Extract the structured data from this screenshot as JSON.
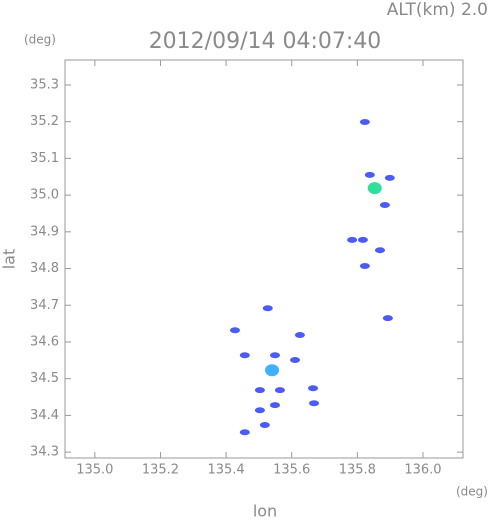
{
  "chart_data": {
    "type": "scatter",
    "title": "2012/09/14 04:07:40",
    "subtitle": "ALT(km) 2.0",
    "y_unit": "(deg)",
    "x_unit": "(deg)",
    "x_label": "lon",
    "y_label": "lat",
    "xlim": [
      134.909,
      136.122
    ],
    "ylim": [
      34.284,
      35.368
    ],
    "xticks": [
      {
        "value": 135.0,
        "label": "135.0"
      },
      135.2,
      135.4,
      135.6,
      135.8,
      {
        "value": 136.0,
        "label": "136.0"
      }
    ],
    "yticks": [
      35.3,
      35.2,
      35.1,
      {
        "value": 35.0,
        "label": "35.0"
      },
      34.9,
      34.8,
      34.7,
      34.6,
      34.5,
      34.4,
      34.3
    ],
    "series": [
      {
        "color": "#4a5cf5",
        "x": [
          135.823,
          135.838,
          135.899,
          135.884,
          135.784,
          135.817,
          135.869,
          135.823,
          135.893,
          135.527,
          135.549,
          135.61,
          135.625,
          135.457,
          135.503,
          135.564,
          135.665,
          135.549,
          135.503,
          135.518,
          135.457,
          135.427,
          135.668
        ],
        "values": [
          35.199,
          35.055,
          35.047,
          34.973,
          34.878,
          34.878,
          34.85,
          34.807,
          34.665,
          34.692,
          34.564,
          34.551,
          34.619,
          34.564,
          34.469,
          34.469,
          34.474,
          34.428,
          34.414,
          34.374,
          34.354,
          34.632,
          34.433
        ]
      },
      {
        "color": "#3fb2ff",
        "x": [
          135.54
        ],
        "values": [
          34.523
        ]
      },
      {
        "color": "#2fe09a",
        "x": [
          135.853
        ],
        "values": [
          35.019
        ]
      }
    ]
  }
}
